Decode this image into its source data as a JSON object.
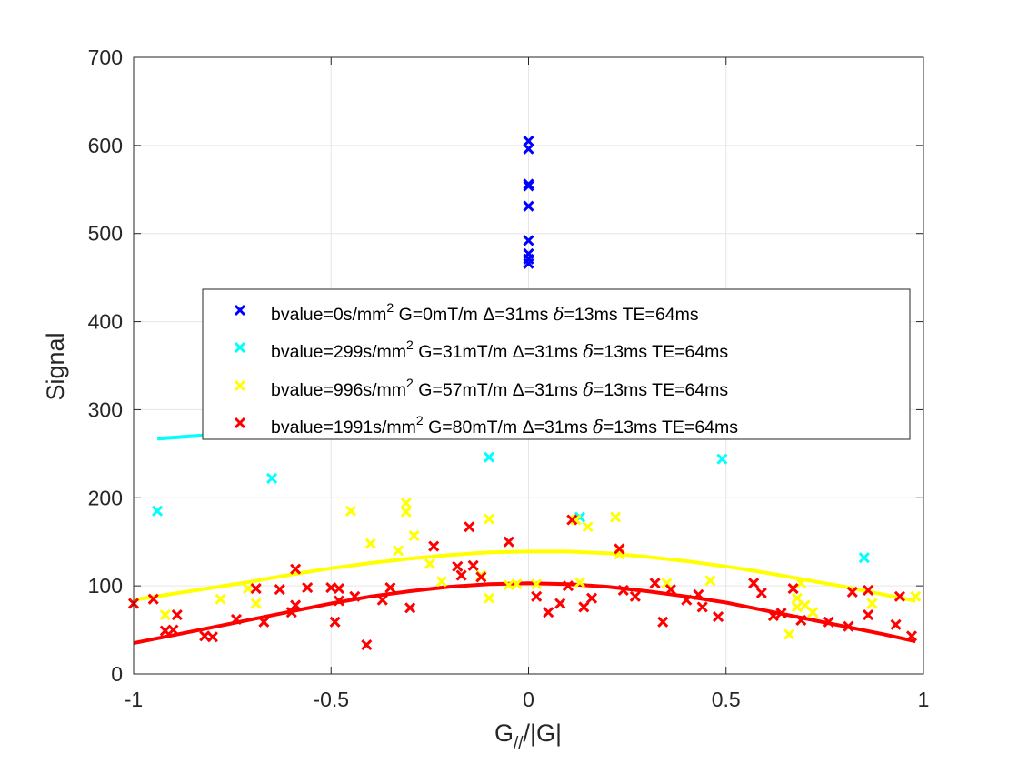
{
  "chart_data": {
    "type": "scatter",
    "xlabel": "G",
    "xlabel_sub": "//",
    "xlabel_suffix": "/|G|",
    "ylabel": "Signal",
    "xlim": [
      -1,
      1
    ],
    "ylim": [
      0,
      700
    ],
    "xticks": [
      -1,
      -0.5,
      0,
      0.5,
      1
    ],
    "xtick_labels": [
      "-1",
      "-0.5",
      "0",
      "0.5",
      "1"
    ],
    "yticks": [
      0,
      100,
      200,
      300,
      400,
      500,
      600,
      700
    ],
    "ytick_labels": [
      "0",
      "100",
      "200",
      "300",
      "400",
      "500",
      "600",
      "700"
    ],
    "grid": true,
    "legend_position": "center-right",
    "series": [
      {
        "name": "bvalue=0s/mm2 G=0mT/m Δ=31ms δ=13ms TE=64ms",
        "legend_parts": [
          "bvalue=0s/mm",
          "2",
          " G=0mT/m ",
          "Δ",
          "=31ms ",
          "δ",
          "=13ms TE=64ms"
        ],
        "color": "#0000ff",
        "points": [
          [
            0,
            605
          ],
          [
            0,
            596
          ],
          [
            0,
            556
          ],
          [
            0,
            554
          ],
          [
            0,
            531
          ],
          [
            0,
            492
          ],
          [
            0,
            477
          ],
          [
            0,
            471
          ],
          [
            0,
            466
          ]
        ],
        "fit": []
      },
      {
        "name": "bvalue=299s/mm2 G=31mT/m Δ=31ms δ=13ms TE=64ms",
        "legend_parts": [
          "bvalue=299s/mm",
          "2",
          " G=31mT/m ",
          "Δ",
          "=31ms ",
          "δ",
          "=13ms TE=64ms"
        ],
        "color": "#00ffff",
        "points": [
          [
            -0.94,
            185
          ],
          [
            -0.65,
            222
          ],
          [
            -0.1,
            246
          ],
          [
            0.13,
            178
          ],
          [
            0.49,
            244
          ],
          [
            0.85,
            132
          ]
        ],
        "fit": [
          [
            -0.94,
            267
          ],
          [
            -0.85,
            270
          ],
          [
            -0.75,
            273
          ],
          [
            -0.68,
            276
          ]
        ]
      },
      {
        "name": "bvalue=996s/mm2 G=57mT/m Δ=31ms δ=13ms TE=64ms",
        "legend_parts": [
          "bvalue=996s/mm",
          "2",
          " G=57mT/m ",
          "Δ",
          "=31ms ",
          "δ",
          "=13ms TE=64ms"
        ],
        "color": "#ffff00",
        "points": [
          [
            -0.92,
            67
          ],
          [
            -0.78,
            85
          ],
          [
            -0.71,
            97
          ],
          [
            -0.69,
            80
          ],
          [
            -0.45,
            185
          ],
          [
            -0.4,
            148
          ],
          [
            -0.33,
            140
          ],
          [
            -0.31,
            194
          ],
          [
            -0.31,
            184
          ],
          [
            -0.29,
            157
          ],
          [
            -0.25,
            125
          ],
          [
            -0.22,
            105
          ],
          [
            -0.12,
            112
          ],
          [
            -0.1,
            176
          ],
          [
            -0.1,
            86
          ],
          [
            -0.05,
            101
          ],
          [
            -0.03,
            102
          ],
          [
            0.02,
            102
          ],
          [
            0.12,
            175
          ],
          [
            0.13,
            104
          ],
          [
            0.15,
            167
          ],
          [
            0.22,
            178
          ],
          [
            0.23,
            136
          ],
          [
            0.35,
            103
          ],
          [
            0.46,
            106
          ],
          [
            0.66,
            45
          ],
          [
            0.68,
            86
          ],
          [
            0.68,
            76
          ],
          [
            0.69,
            103
          ],
          [
            0.7,
            78
          ],
          [
            0.72,
            70
          ],
          [
            0.87,
            80
          ],
          [
            0.98,
            88
          ]
        ],
        "fit": [
          [
            -1,
            84
          ],
          [
            -0.9,
            91
          ],
          [
            -0.8,
            98
          ],
          [
            -0.7,
            105
          ],
          [
            -0.6,
            113
          ],
          [
            -0.5,
            120
          ],
          [
            -0.4,
            126
          ],
          [
            -0.3,
            131
          ],
          [
            -0.2,
            135
          ],
          [
            -0.1,
            138
          ],
          [
            0,
            139
          ],
          [
            0.1,
            139
          ],
          [
            0.2,
            137
          ],
          [
            0.3,
            133
          ],
          [
            0.4,
            128
          ],
          [
            0.5,
            122
          ],
          [
            0.6,
            115
          ],
          [
            0.7,
            107
          ],
          [
            0.8,
            99
          ],
          [
            0.9,
            90
          ],
          [
            0.98,
            83
          ]
        ]
      },
      {
        "name": "bvalue=1991s/mm2 G=80mT/m Δ=31ms δ=13ms TE=64ms",
        "legend_parts": [
          "bvalue=1991s/mm",
          "2",
          " G=80mT/m ",
          "Δ",
          "=31ms ",
          "δ",
          "=13ms TE=64ms"
        ],
        "color": "#ff0000",
        "points": [
          [
            -1,
            80
          ],
          [
            -0.95,
            85
          ],
          [
            -0.92,
            49
          ],
          [
            -0.9,
            50
          ],
          [
            -0.89,
            67
          ],
          [
            -0.82,
            43
          ],
          [
            -0.8,
            42
          ],
          [
            -0.74,
            62
          ],
          [
            -0.69,
            97
          ],
          [
            -0.67,
            59
          ],
          [
            -0.63,
            96
          ],
          [
            -0.6,
            70
          ],
          [
            -0.59,
            78
          ],
          [
            -0.59,
            119
          ],
          [
            -0.56,
            98
          ],
          [
            -0.5,
            98
          ],
          [
            -0.49,
            59
          ],
          [
            -0.48,
            97
          ],
          [
            -0.48,
            83
          ],
          [
            -0.44,
            88
          ],
          [
            -0.41,
            33
          ],
          [
            -0.37,
            84
          ],
          [
            -0.35,
            98
          ],
          [
            -0.3,
            75
          ],
          [
            -0.24,
            145
          ],
          [
            -0.18,
            122
          ],
          [
            -0.17,
            112
          ],
          [
            -0.15,
            167
          ],
          [
            -0.14,
            123
          ],
          [
            -0.12,
            110
          ],
          [
            -0.05,
            150
          ],
          [
            0.02,
            88
          ],
          [
            0.05,
            70
          ],
          [
            0.08,
            80
          ],
          [
            0.1,
            100
          ],
          [
            0.11,
            175
          ],
          [
            0.14,
            76
          ],
          [
            0.16,
            86
          ],
          [
            0.23,
            142
          ],
          [
            0.24,
            95
          ],
          [
            0.27,
            88
          ],
          [
            0.32,
            103
          ],
          [
            0.34,
            59
          ],
          [
            0.36,
            96
          ],
          [
            0.4,
            84
          ],
          [
            0.43,
            90
          ],
          [
            0.44,
            76
          ],
          [
            0.48,
            65
          ],
          [
            0.57,
            103
          ],
          [
            0.59,
            92
          ],
          [
            0.62,
            66
          ],
          [
            0.64,
            69
          ],
          [
            0.67,
            97
          ],
          [
            0.69,
            61
          ],
          [
            0.76,
            59
          ],
          [
            0.81,
            54
          ],
          [
            0.82,
            93
          ],
          [
            0.86,
            95
          ],
          [
            0.86,
            67
          ],
          [
            0.93,
            56
          ],
          [
            0.94,
            88
          ],
          [
            0.97,
            43
          ]
        ],
        "fit": [
          [
            -1,
            35
          ],
          [
            -0.9,
            44
          ],
          [
            -0.8,
            53
          ],
          [
            -0.7,
            62
          ],
          [
            -0.6,
            71
          ],
          [
            -0.5,
            80
          ],
          [
            -0.4,
            88
          ],
          [
            -0.3,
            94
          ],
          [
            -0.2,
            99
          ],
          [
            -0.1,
            102
          ],
          [
            0,
            103
          ],
          [
            0.1,
            102
          ],
          [
            0.2,
            99
          ],
          [
            0.3,
            94
          ],
          [
            0.4,
            88
          ],
          [
            0.5,
            81
          ],
          [
            0.6,
            72
          ],
          [
            0.7,
            63
          ],
          [
            0.8,
            54
          ],
          [
            0.9,
            45
          ],
          [
            0.98,
            37
          ]
        ]
      }
    ]
  }
}
